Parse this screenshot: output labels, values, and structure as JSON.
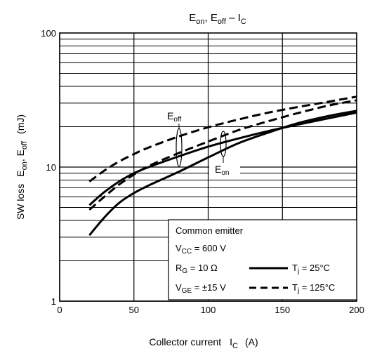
{
  "chart_data": {
    "type": "line",
    "title": {
      "a": "E",
      "a_sub": "on",
      "b": ", E",
      "b_sub": "off",
      "c": " – I",
      "c_sub": "C"
    },
    "xlabel": {
      "main": "Collector current",
      "sym": "I",
      "sym_sub": "C",
      "unit": "(A)"
    },
    "ylabel": {
      "pre": "SW loss",
      "a": "E",
      "a_sub": "on",
      "b": ", E",
      "b_sub": "off",
      "unit": "(mJ)"
    },
    "xlim": [
      0,
      200
    ],
    "ylim": [
      1,
      100
    ],
    "y_scale": "log",
    "grid": true,
    "x_ticks": [
      0,
      50,
      100,
      150,
      200
    ],
    "y_ticks": [
      {
        "value": 1,
        "label": "1"
      },
      {
        "value": 10,
        "label": "10"
      },
      {
        "value": 100,
        "label": "100"
      }
    ],
    "series": [
      {
        "quantity": "Eoff",
        "condition": "Tj=25",
        "style": "solid",
        "x": [
          20,
          30,
          40,
          50,
          60,
          80,
          100,
          120,
          140,
          160,
          180,
          200
        ],
        "y": [
          5.2,
          6.5,
          7.8,
          9.0,
          10.0,
          12.0,
          14.2,
          16.3,
          18.5,
          20.7,
          23.0,
          25.5
        ]
      },
      {
        "quantity": "Eoff",
        "condition": "Tj=125",
        "style": "dashed",
        "x": [
          20,
          30,
          40,
          50,
          60,
          80,
          100,
          120,
          140,
          160,
          180,
          200
        ],
        "y": [
          7.8,
          9.4,
          11.0,
          12.5,
          14.0,
          16.9,
          19.8,
          22.6,
          25.4,
          28.0,
          30.6,
          33.5
        ]
      },
      {
        "quantity": "Eon",
        "condition": "Tj=25",
        "style": "solid",
        "x": [
          20,
          30,
          40,
          50,
          60,
          80,
          100,
          120,
          140,
          160,
          180,
          200
        ],
        "y": [
          3.1,
          4.2,
          5.4,
          6.4,
          7.3,
          9.2,
          11.8,
          15.0,
          18.0,
          21.2,
          23.9,
          26.3
        ]
      },
      {
        "quantity": "Eon",
        "condition": "Tj=125",
        "style": "dashed",
        "x": [
          20,
          30,
          40,
          50,
          60,
          80,
          100,
          120,
          140,
          160,
          180,
          200
        ],
        "y": [
          4.8,
          6.0,
          7.4,
          8.8,
          10.2,
          12.7,
          15.5,
          18.8,
          21.9,
          25.2,
          28.6,
          31.5
        ]
      }
    ],
    "annotations": {
      "eoff": {
        "main": "E",
        "sub": "off"
      },
      "eon": {
        "main": "E",
        "sub": "on"
      }
    },
    "legend": {
      "placement": "bottom-right",
      "heading": "Common emitter",
      "vcc": {
        "main": "V",
        "sub": "CC",
        "value": " = 600 V"
      },
      "rg": {
        "main": "R",
        "sub": "G",
        "value": " = 10 Ω"
      },
      "vge": {
        "main": "V",
        "sub": "GE",
        "value": " = ±15 V"
      },
      "solid": {
        "main": "T",
        "sub": "j",
        "value": " = 25°C"
      },
      "dashed": {
        "main": "T",
        "sub": "j",
        "value": " = 125°C"
      }
    }
  }
}
